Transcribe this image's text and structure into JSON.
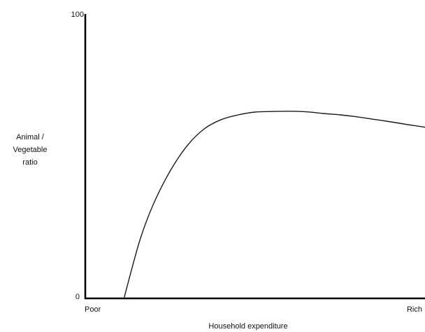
{
  "chart_data": {
    "type": "line",
    "title": "",
    "xlabel": "Household expenditure",
    "ylabel_lines": [
      "Animal /",
      "Vegetable",
      "ratio"
    ],
    "x_categories": [
      "Poor",
      "Rich"
    ],
    "x_range": [
      0,
      100
    ],
    "ylim": [
      0,
      100
    ],
    "y_ticks": [
      "0",
      "100"
    ],
    "grid": false,
    "series": [
      {
        "x": [
          11.5,
          16,
          20,
          25,
          30,
          35,
          40,
          45,
          50,
          55,
          60,
          65,
          70,
          75,
          80,
          85,
          90,
          95,
          100
        ],
        "y": [
          0,
          20,
          33,
          45,
          54,
          60,
          63.3,
          65,
          66,
          66.2,
          66.3,
          66.1,
          65.5,
          65,
          64.3,
          63.4,
          62.5,
          61.5,
          60.6
        ],
        "color": "#1a1a1a"
      }
    ]
  }
}
